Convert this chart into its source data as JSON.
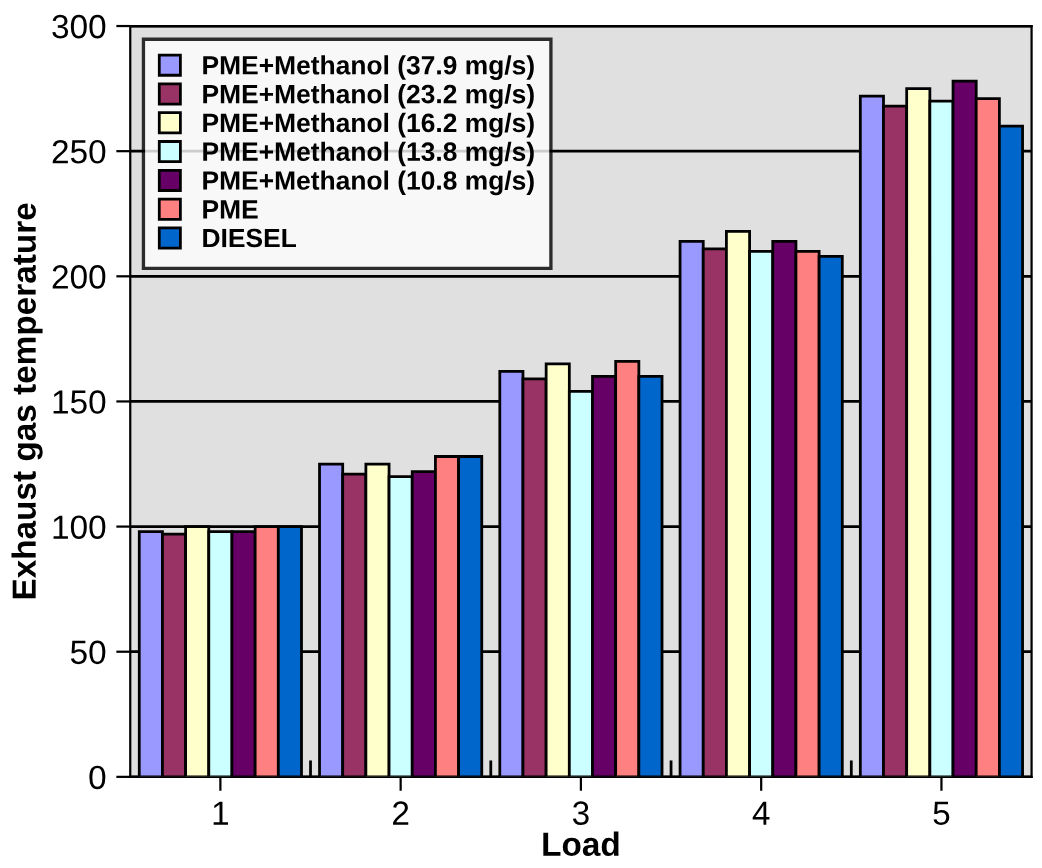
{
  "chart_data": {
    "type": "bar",
    "xlabel": "Load",
    "ylabel": "Exhaust gas temperature",
    "categories": [
      "1",
      "2",
      "3",
      "4",
      "5"
    ],
    "series": [
      {
        "name": "PME+Methanol (37.9 mg/s)",
        "color": "#9999ff",
        "values": [
          98,
          125,
          162,
          214,
          272
        ]
      },
      {
        "name": "PME+Methanol (23.2 mg/s)",
        "color": "#993366",
        "values": [
          97,
          121,
          159,
          211,
          268
        ]
      },
      {
        "name": "PME+Methanol (16.2 mg/s)",
        "color": "#ffffcc",
        "values": [
          100,
          125,
          165,
          218,
          275
        ]
      },
      {
        "name": "PME+Methanol (13.8 mg/s)",
        "color": "#ccffff",
        "values": [
          98,
          120,
          154,
          210,
          270
        ]
      },
      {
        "name": "PME+Methanol (10.8 mg/s)",
        "color": "#660066",
        "values": [
          98,
          122,
          160,
          214,
          278
        ]
      },
      {
        "name": "PME",
        "color": "#ff8080",
        "values": [
          100,
          128,
          166,
          210,
          271
        ]
      },
      {
        "name": "DIESEL",
        "color": "#0066cc",
        "values": [
          100,
          128,
          160,
          208,
          260
        ]
      }
    ],
    "ylim": [
      0,
      300
    ],
    "yticks": [
      0,
      50,
      100,
      150,
      200,
      250,
      300
    ],
    "grid": "y",
    "legend": "top left"
  }
}
